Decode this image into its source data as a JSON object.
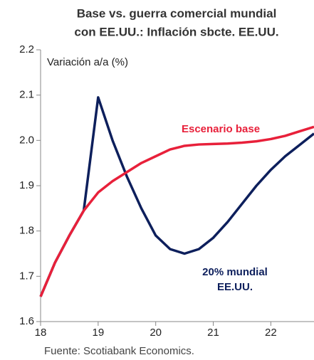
{
  "chart_data": {
    "type": "line",
    "title": [
      "Base vs. guerra comercial mundial",
      "con EE.UU.: Inflación sbcte. EE.UU."
    ],
    "y_label": "Variación a/a (%)",
    "source": "Fuente: Scotiabank Economics.",
    "annotations": [
      "Escenario base",
      "20% mundial",
      "EE.UU."
    ],
    "xlim": [
      18,
      22.75
    ],
    "xticks": [
      18,
      19,
      20,
      21,
      22
    ],
    "ylim": [
      1.6,
      2.2
    ],
    "yticks": [
      1.6,
      1.7,
      1.8,
      1.9,
      {
        "value": 2,
        "label": "2.0"
      },
      2.1,
      2.2
    ],
    "x": [
      18,
      18.25,
      18.5,
      18.75,
      19,
      19.25,
      19.5,
      19.75,
      20,
      20.25,
      20.5,
      20.75,
      21,
      21.25,
      21.5,
      21.75,
      22,
      22.25,
      22.5,
      22.75
    ],
    "series": [
      {
        "color": "#e8203a",
        "values": [
          1.655,
          1.73,
          1.79,
          1.845,
          1.885,
          1.91,
          1.93,
          1.95,
          1.965,
          1.98,
          1.988,
          1.991,
          1.992,
          1.993,
          1.995,
          1.998,
          2.003,
          2.01,
          2.02,
          2.03
        ]
      },
      {
        "color": "#0d1f5c",
        "values": [
          1.655,
          1.73,
          1.79,
          1.845,
          2.095,
          2.0,
          1.92,
          1.85,
          1.79,
          1.76,
          1.75,
          1.76,
          1.785,
          1.82,
          1.86,
          1.9,
          1.935,
          1.965,
          1.99,
          2.015
        ]
      }
    ]
  }
}
